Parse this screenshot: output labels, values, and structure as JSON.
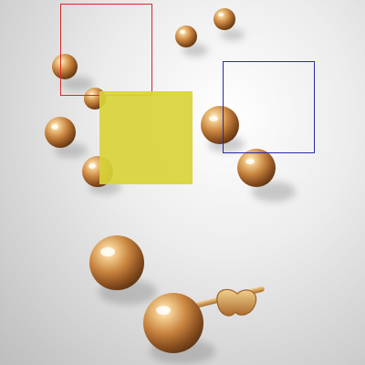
{
  "image": {
    "subject": "gold-ball-stud-earrings",
    "background_color": "#e6e6e6"
  },
  "overlays": {
    "red_box": {
      "stroke": "#d42b2b"
    },
    "blue_box": {
      "stroke": "#2a2aa6"
    },
    "yellow_patch": {
      "fill": "#d8d43a"
    }
  }
}
